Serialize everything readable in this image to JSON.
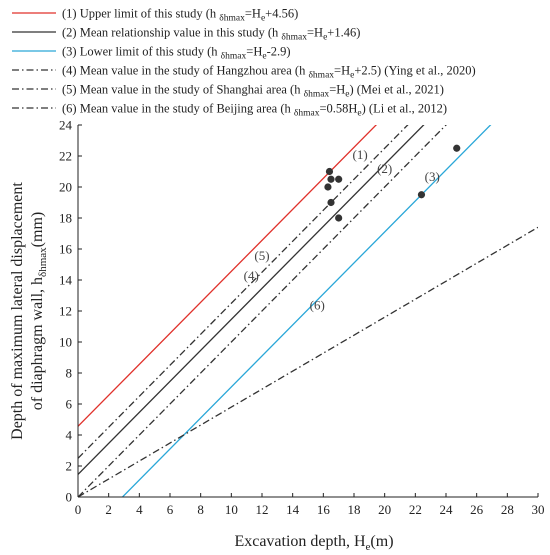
{
  "chart_data": {
    "type": "line",
    "xlabel": "Excavation depth, H",
    "xlabel_sub": "e",
    "xlabel_unit": "(m)",
    "ylabel_line1": "Depth of maximum lateral displacement",
    "ylabel_line2_prefix": "of diaphragm wall, h",
    "ylabel_line2_sub": "δhmax",
    "ylabel_line2_unit": "(mm)",
    "xlim": [
      0,
      30
    ],
    "ylim": [
      0,
      24
    ],
    "xticks": [
      0,
      2,
      4,
      6,
      8,
      10,
      12,
      14,
      16,
      18,
      20,
      22,
      24,
      26,
      28,
      30
    ],
    "yticks": [
      0,
      2,
      4,
      6,
      8,
      10,
      12,
      14,
      16,
      18,
      20,
      22,
      24
    ],
    "grid": false,
    "legend_position": "top",
    "series": [
      {
        "name_prefix": "(1) Upper limit of this study (h ",
        "name_sub": "δhmax",
        "name_mid": "=H",
        "name_sub2": "e",
        "name_suffix": "+4.56)",
        "label": "(1)",
        "slope": 1,
        "intercept": 4.56,
        "color": "#e0312b",
        "dash": "solid"
      },
      {
        "name_prefix": "(2) Mean relationship value in this study (h ",
        "name_sub": "δhmax",
        "name_mid": "=H",
        "name_sub2": "e",
        "name_suffix": "+1.46)",
        "label": "(2)",
        "slope": 1,
        "intercept": 1.46,
        "color": "#333333",
        "dash": "solid"
      },
      {
        "name_prefix": "(3) Lower limit of this study  (h ",
        "name_sub": "δhmax",
        "name_mid": "=H",
        "name_sub2": "e",
        "name_suffix": "-2.9)",
        "label": "(3)",
        "slope": 1,
        "intercept": -2.9,
        "color": "#2aa7d8",
        "dash": "solid"
      },
      {
        "name_prefix": "(4) Mean value in the study of Hangzhou area (h ",
        "name_sub": "δhmax",
        "name_mid": "=H",
        "name_sub2": "e",
        "name_suffix": "+2.5) (Ying et al., 2020)",
        "label": "(4)",
        "slope": 1,
        "intercept": 2.5,
        "color": "#333333",
        "dash": "dashdot"
      },
      {
        "name_prefix": "(5) Mean value in the study of Shanghai area (h ",
        "name_sub": "δhmax",
        "name_mid": "=H",
        "name_sub2": "e",
        "name_suffix": ") (Mei et al., 2021)",
        "label": "(5)",
        "slope": 1,
        "intercept": 0,
        "color": "#333333",
        "dash": "dashdot"
      },
      {
        "name_prefix": "(6) Mean value in the study of Beijing area (h ",
        "name_sub": "δhmax",
        "name_mid": "=0.58H",
        "name_sub2": "e",
        "name_suffix": ") (Li et al., 2012)",
        "label": "(6)",
        "slope": 0.58,
        "intercept": 0,
        "color": "#333333",
        "dash": "dashdot"
      }
    ],
    "curve_label_positions": [
      {
        "label": "(1)",
        "x": 18.4,
        "y": 21.8
      },
      {
        "label": "(2)",
        "x": 20.0,
        "y": 20.9
      },
      {
        "label": "(3)",
        "x": 23.1,
        "y": 20.4
      },
      {
        "label": "(4)",
        "x": 11.3,
        "y": 14.0
      },
      {
        "label": "(5)",
        "x": 12.0,
        "y": 15.3
      },
      {
        "label": "(6)",
        "x": 15.6,
        "y": 12.1
      }
    ],
    "points": [
      {
        "x": 16.3,
        "y": 20.0
      },
      {
        "x": 16.4,
        "y": 21.0
      },
      {
        "x": 16.5,
        "y": 20.5
      },
      {
        "x": 17.0,
        "y": 20.5
      },
      {
        "x": 16.5,
        "y": 19.0
      },
      {
        "x": 17.0,
        "y": 18.0
      },
      {
        "x": 22.4,
        "y": 19.5
      },
      {
        "x": 24.7,
        "y": 22.5
      }
    ]
  }
}
